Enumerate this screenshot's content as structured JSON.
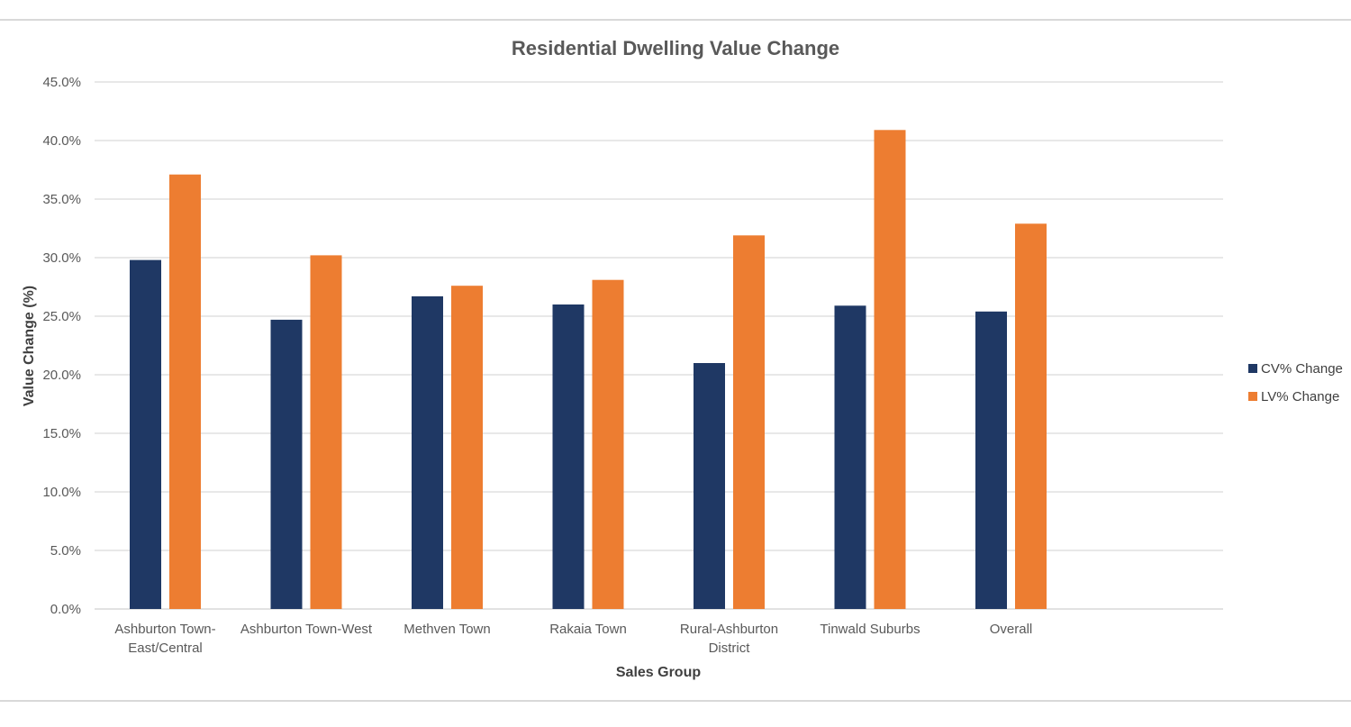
{
  "chart_data": {
    "type": "bar",
    "title": "Residential Dwelling Value Change",
    "xlabel": "Sales Group",
    "ylabel": "Value Change (%)",
    "ylim": [
      0,
      45
    ],
    "yticks": [
      "0.0%",
      "5.0%",
      "10.0%",
      "15.0%",
      "20.0%",
      "25.0%",
      "30.0%",
      "35.0%",
      "40.0%",
      "45.0%"
    ],
    "categories": [
      "Ashburton Town-East/Central",
      "Ashburton Town-West",
      "Methven Town",
      "Rakaia Town",
      "Rural-Ashburton District",
      "Tinwald Suburbs",
      "Overall"
    ],
    "category_label_lines": [
      [
        "Ashburton Town-",
        "East/Central"
      ],
      [
        "Ashburton Town-West"
      ],
      [
        "Methven Town"
      ],
      [
        "Rakaia Town"
      ],
      [
        "Rural-Ashburton",
        "District"
      ],
      [
        "Tinwald Suburbs"
      ],
      [
        "Overall"
      ]
    ],
    "series": [
      {
        "name": "CV% Change",
        "color": "#1f3864",
        "values": [
          29.8,
          24.7,
          26.7,
          26.0,
          21.0,
          25.9,
          25.4
        ]
      },
      {
        "name": "LV% Change",
        "color": "#ed7d31",
        "values": [
          37.1,
          30.2,
          27.6,
          28.1,
          31.9,
          40.9,
          32.9
        ]
      }
    ],
    "grid": true,
    "legend_position": "right"
  }
}
